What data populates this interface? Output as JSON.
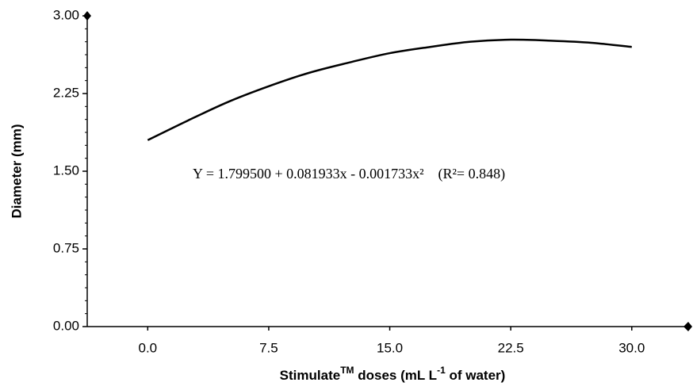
{
  "chart_data": {
    "type": "line",
    "x_label": [
      "Stimulate",
      "TM",
      " doses (mL L",
      "-1",
      " of water)"
    ],
    "y_label": "Diameter (mm)",
    "annotation": "Y = 1.799500 + 0.081933x - 0.001733x²    (R²= 0.848)",
    "x": [
      0,
      2.5,
      5,
      7.5,
      10,
      12.5,
      15,
      17.5,
      20,
      22.5,
      25,
      27.5,
      30
    ],
    "series": [
      {
        "color": "#000000",
        "values": [
          1.8,
          1.99,
          2.17,
          2.32,
          2.45,
          2.55,
          2.64,
          2.7,
          2.75,
          2.77,
          2.76,
          2.74,
          2.7
        ]
      }
    ],
    "xlim": [
      -3.75,
      33.5
    ],
    "xticks": [
      {
        "value": 0,
        "label": "0.0"
      },
      {
        "value": 7.5,
        "label": "7.5"
      },
      {
        "value": 15,
        "label": "15.0"
      },
      {
        "value": 22.5,
        "label": "22.5"
      },
      {
        "value": 30,
        "label": "30.0"
      }
    ],
    "ylim": [
      0,
      3
    ],
    "yticks": [
      {
        "value": 0,
        "label": "0.00"
      },
      {
        "value": 0.75,
        "label": "0.75"
      },
      {
        "value": 1.5,
        "label": "1.50"
      },
      {
        "value": 2.25,
        "label": "2.25"
      },
      {
        "value": 3,
        "label": "3.00"
      }
    ],
    "grid": false
  }
}
